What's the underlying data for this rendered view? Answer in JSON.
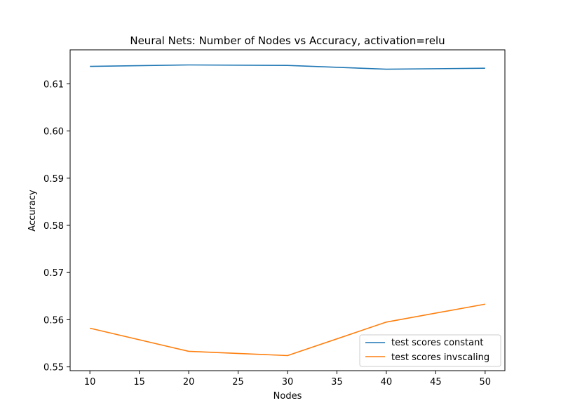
{
  "chart_data": {
    "type": "line",
    "title": "Neural Nets: Number of Nodes vs Accuracy, activation=relu",
    "xlabel": "Nodes",
    "ylabel": "Accuracy",
    "x": [
      10,
      20,
      30,
      40,
      50
    ],
    "xlim": [
      8,
      52
    ],
    "ylim": [
      0.5492,
      0.6172
    ],
    "xticks": [
      10,
      15,
      20,
      25,
      30,
      35,
      40,
      45,
      50
    ],
    "xtick_labels": [
      "10",
      "15",
      "20",
      "25",
      "30",
      "35",
      "40",
      "45",
      "50"
    ],
    "yticks": [
      0.55,
      0.56,
      0.57,
      0.58,
      0.59,
      0.6,
      0.61
    ],
    "ytick_labels": [
      "0.55",
      "0.56",
      "0.57",
      "0.58",
      "0.59",
      "0.60",
      "0.61"
    ],
    "grid": false,
    "legend_position": "lower-right",
    "series": [
      {
        "name": "test scores constant",
        "color": "#1f77b4",
        "values": [
          0.6137,
          0.614,
          0.6139,
          0.6131,
          0.6133
        ]
      },
      {
        "name": "test scores invscaling",
        "color": "#ff7f0e",
        "values": [
          0.5582,
          0.5533,
          0.5524,
          0.5595,
          0.5633
        ]
      }
    ]
  }
}
